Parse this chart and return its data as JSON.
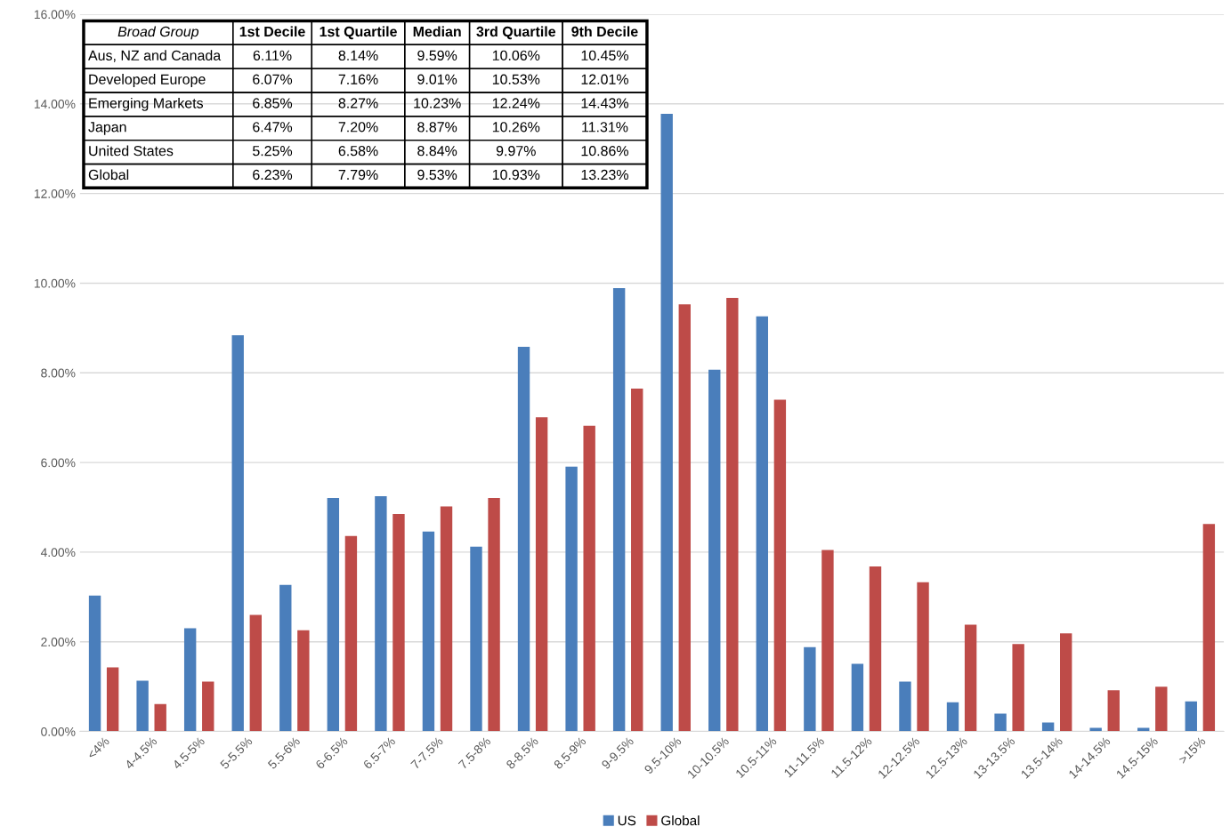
{
  "chart_data": [
    {
      "type": "bar",
      "categories": [
        "<4%",
        "4-4.5%",
        "4.5-5%",
        "5-5.5%",
        "5.5-6%",
        "6-6.5%",
        "6.5-7%",
        "7-7.5%",
        "7.5-8%",
        "8-8.5%",
        "8.5-9%",
        "9-9.5%",
        "9.5-10%",
        "10-10.5%",
        "10.5-11%",
        "11-11.5%",
        "11.5-12%",
        "12-12.5%",
        "12.5-13%",
        "13-13.5%",
        "13.5-14%",
        "14-14.5%",
        "14.5-15%",
        ">15%"
      ],
      "series": [
        {
          "name": "US",
          "color": "#4a7ebb",
          "values": [
            3.03,
            1.13,
            2.3,
            8.84,
            3.27,
            5.21,
            5.25,
            4.46,
            4.12,
            8.58,
            5.91,
            9.89,
            13.78,
            8.07,
            9.26,
            1.88,
            1.51,
            1.11,
            0.65,
            0.4,
            0.2,
            0.08,
            0.08,
            0.67
          ]
        },
        {
          "name": "Global",
          "color": "#be4b48",
          "values": [
            1.43,
            0.61,
            1.11,
            2.6,
            2.26,
            4.36,
            4.85,
            5.02,
            5.21,
            7.01,
            6.82,
            7.65,
            9.53,
            9.67,
            7.4,
            4.05,
            3.68,
            3.33,
            2.38,
            1.95,
            2.19,
            0.92,
            1.0,
            4.63
          ]
        }
      ],
      "ylim": [
        0,
        16
      ],
      "yticks": [
        {
          "value": 0,
          "label": "0.00%"
        },
        {
          "value": 2,
          "label": "2.00%"
        },
        {
          "value": 4,
          "label": "4.00%"
        },
        {
          "value": 6,
          "label": "6.00%"
        },
        {
          "value": 8,
          "label": "8.00%"
        },
        {
          "value": 10,
          "label": "10.00%"
        },
        {
          "value": 12,
          "label": "12.00%"
        },
        {
          "value": 14,
          "label": "14.00%"
        },
        {
          "value": 16,
          "label": "16.00%"
        }
      ],
      "grid": "y",
      "legend": "bottom"
    },
    {
      "type": "other",
      "ylabel": "Broad Group",
      "categories": [
        "1st Decile",
        "1st Quartile",
        "Median",
        "3rd Quartile",
        "9th Decile"
      ],
      "y_categories": [
        "Aus, NZ and Canada",
        "Developed Europe",
        "Emerging Markets",
        "Japan",
        "United States",
        "Global"
      ],
      "cell_labels": [
        [
          "6.11%",
          "8.14%",
          "9.59%",
          "10.06%",
          "10.45%"
        ],
        [
          "6.07%",
          "7.16%",
          "9.01%",
          "10.53%",
          "12.01%"
        ],
        [
          "6.85%",
          "8.27%",
          "10.23%",
          "12.24%",
          "14.43%"
        ],
        [
          "6.47%",
          "7.20%",
          "8.87%",
          "10.26%",
          "11.31%"
        ],
        [
          "5.25%",
          "6.58%",
          "8.84%",
          "9.97%",
          "10.86%"
        ],
        [
          "6.23%",
          "7.79%",
          "9.53%",
          "10.93%",
          "13.23%"
        ]
      ]
    }
  ]
}
